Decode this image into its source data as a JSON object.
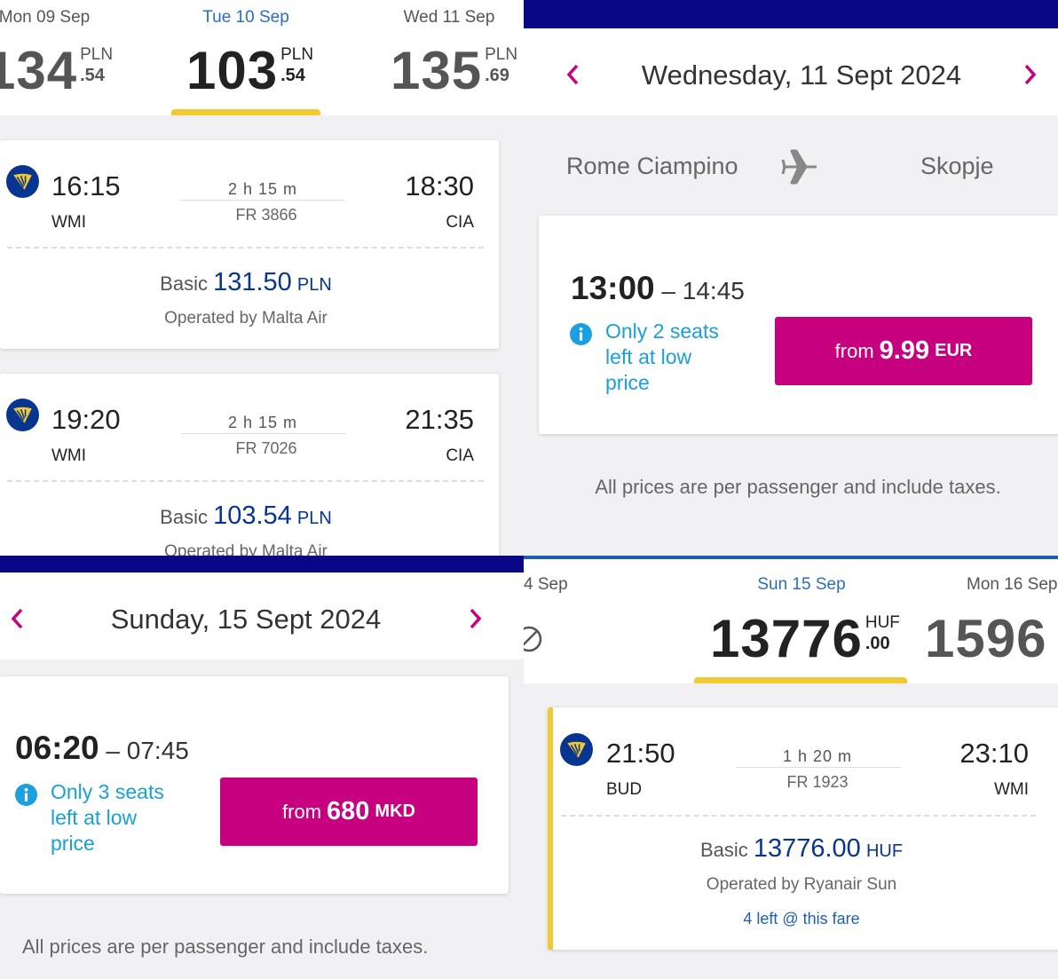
{
  "top_left": {
    "date_tabs": [
      {
        "date": "Mon 09 Sep",
        "price": "134",
        "cents": ".54",
        "currency": "PLN"
      },
      {
        "date": "Tue 10 Sep",
        "price": "103",
        "cents": ".54",
        "currency": "PLN"
      },
      {
        "date": "Wed 11 Sep",
        "price": "135",
        "cents": ".69",
        "currency": "PLN"
      }
    ],
    "flights": [
      {
        "depart": "16:15",
        "depart_code": "WMI",
        "duration": "2 h 15 m",
        "flight_no": "FR 3866",
        "arrive": "18:30",
        "arrive_code": "CIA",
        "fare_label": "Basic",
        "fare_price": "131.50",
        "fare_currency": "PLN",
        "operator": "Operated by Malta Air"
      },
      {
        "depart": "19:20",
        "depart_code": "WMI",
        "duration": "2 h 15 m",
        "flight_no": "FR 7026",
        "arrive": "21:35",
        "arrive_code": "CIA",
        "fare_label": "Basic",
        "fare_price": "103.54",
        "fare_currency": "PLN",
        "operator": "Operated by Malta Air"
      }
    ]
  },
  "top_right": {
    "date_title": "Wednesday, 11 Sept 2024",
    "origin": "Rome Ciampino",
    "destination": "Skopje",
    "flight": {
      "depart": "13:00",
      "separator": "–",
      "arrive": "14:45",
      "notice": "Only 2 seats left at low price",
      "button_prefix": "from",
      "button_price": "9.99",
      "button_currency": "EUR"
    },
    "footer": "All prices are per passenger and include taxes."
  },
  "bottom_left": {
    "date_title": "Sunday, 15 Sept 2024",
    "flight": {
      "depart": "06:20",
      "separator": "–",
      "arrive": "07:45",
      "notice": "Only 3 seats left at low price",
      "button_prefix": "from",
      "button_price": "680",
      "button_currency": "MKD"
    },
    "footer": "All prices are per passenger and include taxes."
  },
  "bottom_right": {
    "date_tabs": [
      {
        "date": "4 Sep"
      },
      {
        "date": "Sun 15 Sep",
        "price": "13776",
        "cents": ".00",
        "currency": "HUF"
      },
      {
        "date": "Mon 16 Sep",
        "price": "1596"
      }
    ],
    "flight": {
      "depart": "21:50",
      "depart_code": "BUD",
      "duration": "1 h 20 m",
      "flight_no": "FR 1923",
      "arrive": "23:10",
      "arrive_code": "WMI",
      "fare_label": "Basic",
      "fare_price": "13776.00",
      "fare_currency": "HUF",
      "operator": "Operated by Ryanair Sun",
      "availability": "4 left @ this fare"
    }
  }
}
